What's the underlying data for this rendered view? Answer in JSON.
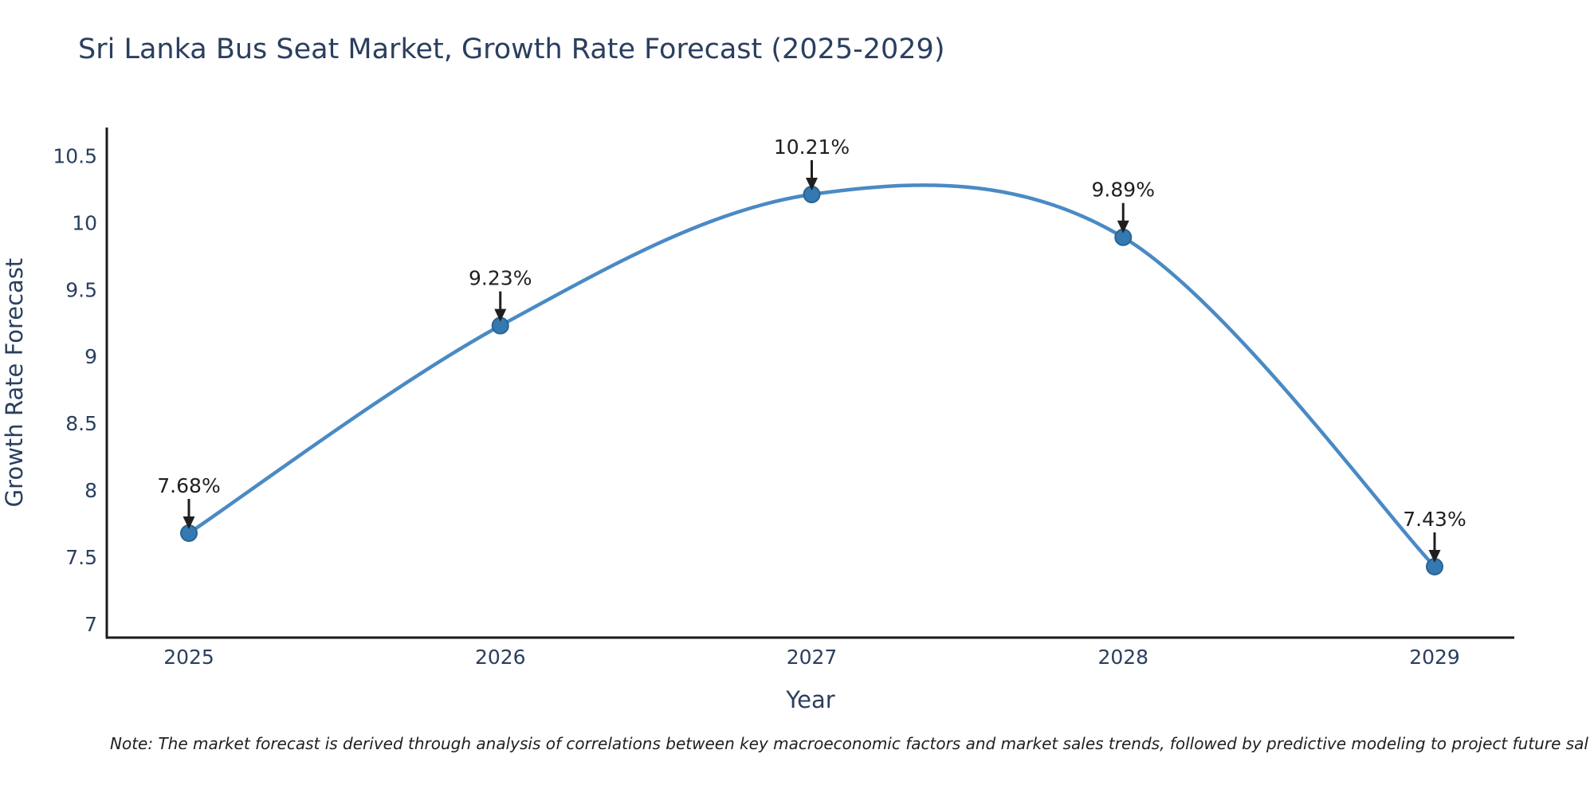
{
  "page": {
    "title": "Sri Lanka Bus Seat Market, Growth Rate Forecast (2025-2029)",
    "note": "Note: The market forecast is derived through analysis of correlations between key macroeconomic factors and market sales trends, followed by predictive modeling to project future sal"
  },
  "chart_data": {
    "type": "line",
    "title": "Sri Lanka Bus Seat Market, Growth Rate Forecast (2025-2029)",
    "xlabel": "Year",
    "ylabel": "Growth Rate Forecast",
    "categories": [
      "2025",
      "2026",
      "2027",
      "2028",
      "2029"
    ],
    "values": [
      7.68,
      9.23,
      10.21,
      9.89,
      7.43
    ],
    "point_labels": [
      "7.68%",
      "9.23%",
      "10.21%",
      "9.89%",
      "7.43%"
    ],
    "series_name": "Growth Rate Forecast",
    "yticks": [
      7,
      7.5,
      8,
      8.5,
      9,
      9.5,
      10,
      10.5
    ],
    "ylim": [
      6.9,
      10.71
    ],
    "grid": false,
    "legend": "none",
    "line_shape": "spline",
    "line_color": "#4a8ac4",
    "marker_color": "#3579b3",
    "marker_edge_color": "#2b648f",
    "axis_color": "#1a1a1a",
    "tick_color": "#2a3f5f",
    "annotation_color": "#1f1f1f"
  }
}
